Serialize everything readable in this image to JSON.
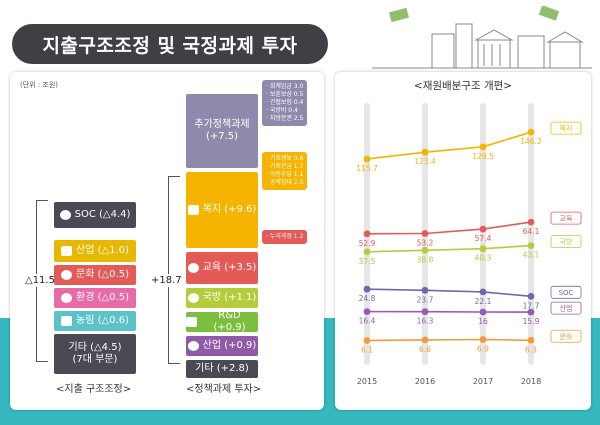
{
  "title": "지출구조조정 및 국정과제 투자",
  "unit": "(단위 : 조원)",
  "left": {
    "restructure": {
      "total": "△11.5",
      "footer": "<지출 구조조정>",
      "items": [
        {
          "label": "SOC (△4.4)",
          "icon": "road-icon",
          "color": "#4a4a55"
        },
        {
          "label": "산업 (△1.0)",
          "icon": "industry-icon",
          "color": "#e6b800"
        },
        {
          "label": "문화 (△0.5)",
          "icon": "culture-icon",
          "color": "#e45a57"
        },
        {
          "label": "환경 (△0.5)",
          "icon": "environment-icon",
          "color": "#e86aa6"
        },
        {
          "label": "농림 (△0.6)",
          "icon": "agriculture-icon",
          "color": "#5bc3c7"
        },
        {
          "label": "기타 (△4.5)",
          "label2": "(7대 부문)",
          "icon": "",
          "color": "#4a4a55"
        }
      ]
    },
    "invest": {
      "total": "+18.7",
      "footer": "<정책과제 투자>",
      "items": [
        {
          "label": "추가정책과제",
          "label2": "(+7.5)",
          "icon": "",
          "color": "#8e8aab"
        },
        {
          "label": "복지 (+9.6)",
          "icon": "family-icon",
          "color": "#f6b400"
        },
        {
          "label": "교육 (+3.5)",
          "icon": "education-icon",
          "color": "#e45a57"
        },
        {
          "label": "국방 (+1.1)",
          "icon": "defense-icon",
          "color": "#b5cc3a"
        },
        {
          "label": "R&D (+0.9)",
          "icon": "rnd-icon",
          "color": "#7cbf3e"
        },
        {
          "label": "산업 (+0.9)",
          "icon": "industry-icon",
          "color": "#8f5aa8"
        },
        {
          "label": "기타 (+2.8)",
          "icon": "",
          "color": "#4a4a55"
        }
      ],
      "callouts": [
        {
          "name": "extra-policy-callout",
          "color": "#8e8aab",
          "lines": [
            "· 회계임금 3.0",
            "· 보훈보상 0.5",
            "· 간접보험 0.4",
            "· 국방비 0.4",
            "· 지방분권 2.5"
          ]
        },
        {
          "name": "welfare-callout",
          "color": "#f6b400",
          "lines": [
            "· 기초생보 0.6",
            "· 기초연금 1.7",
            "· 아동수당 1.1",
            "· 공적임대 2.5"
          ]
        },
        {
          "name": "education-callout",
          "color": "#e45a57",
          "lines": [
            "· 누리과정 1.2"
          ]
        }
      ]
    }
  },
  "chart_data": {
    "type": "line",
    "title": "<재원배분구조 개편>",
    "x": [
      "2015",
      "2016",
      "2017",
      "2018"
    ],
    "series": [
      {
        "name": "복지",
        "color": "#f6b400",
        "values": [
          115.7,
          123.4,
          129.5,
          146.2
        ]
      },
      {
        "name": "교육",
        "color": "#e45a57",
        "values": [
          52.9,
          53.2,
          57.4,
          64.1
        ]
      },
      {
        "name": "국방",
        "color": "#b5cc3a",
        "values": [
          37.5,
          38.8,
          40.3,
          43.1
        ]
      },
      {
        "name": "SOC",
        "color": "#6c6ba8",
        "values": [
          24.8,
          23.7,
          22.1,
          17.7
        ]
      },
      {
        "name": "산업",
        "color": "#9b59b6",
        "values": [
          16.4,
          16.3,
          16.0,
          15.9
        ]
      },
      {
        "name": "문화",
        "color": "#f39c3b",
        "values": [
          6.1,
          6.6,
          6.9,
          6.3
        ]
      }
    ],
    "grid": false,
    "legend": "right-end labels"
  }
}
